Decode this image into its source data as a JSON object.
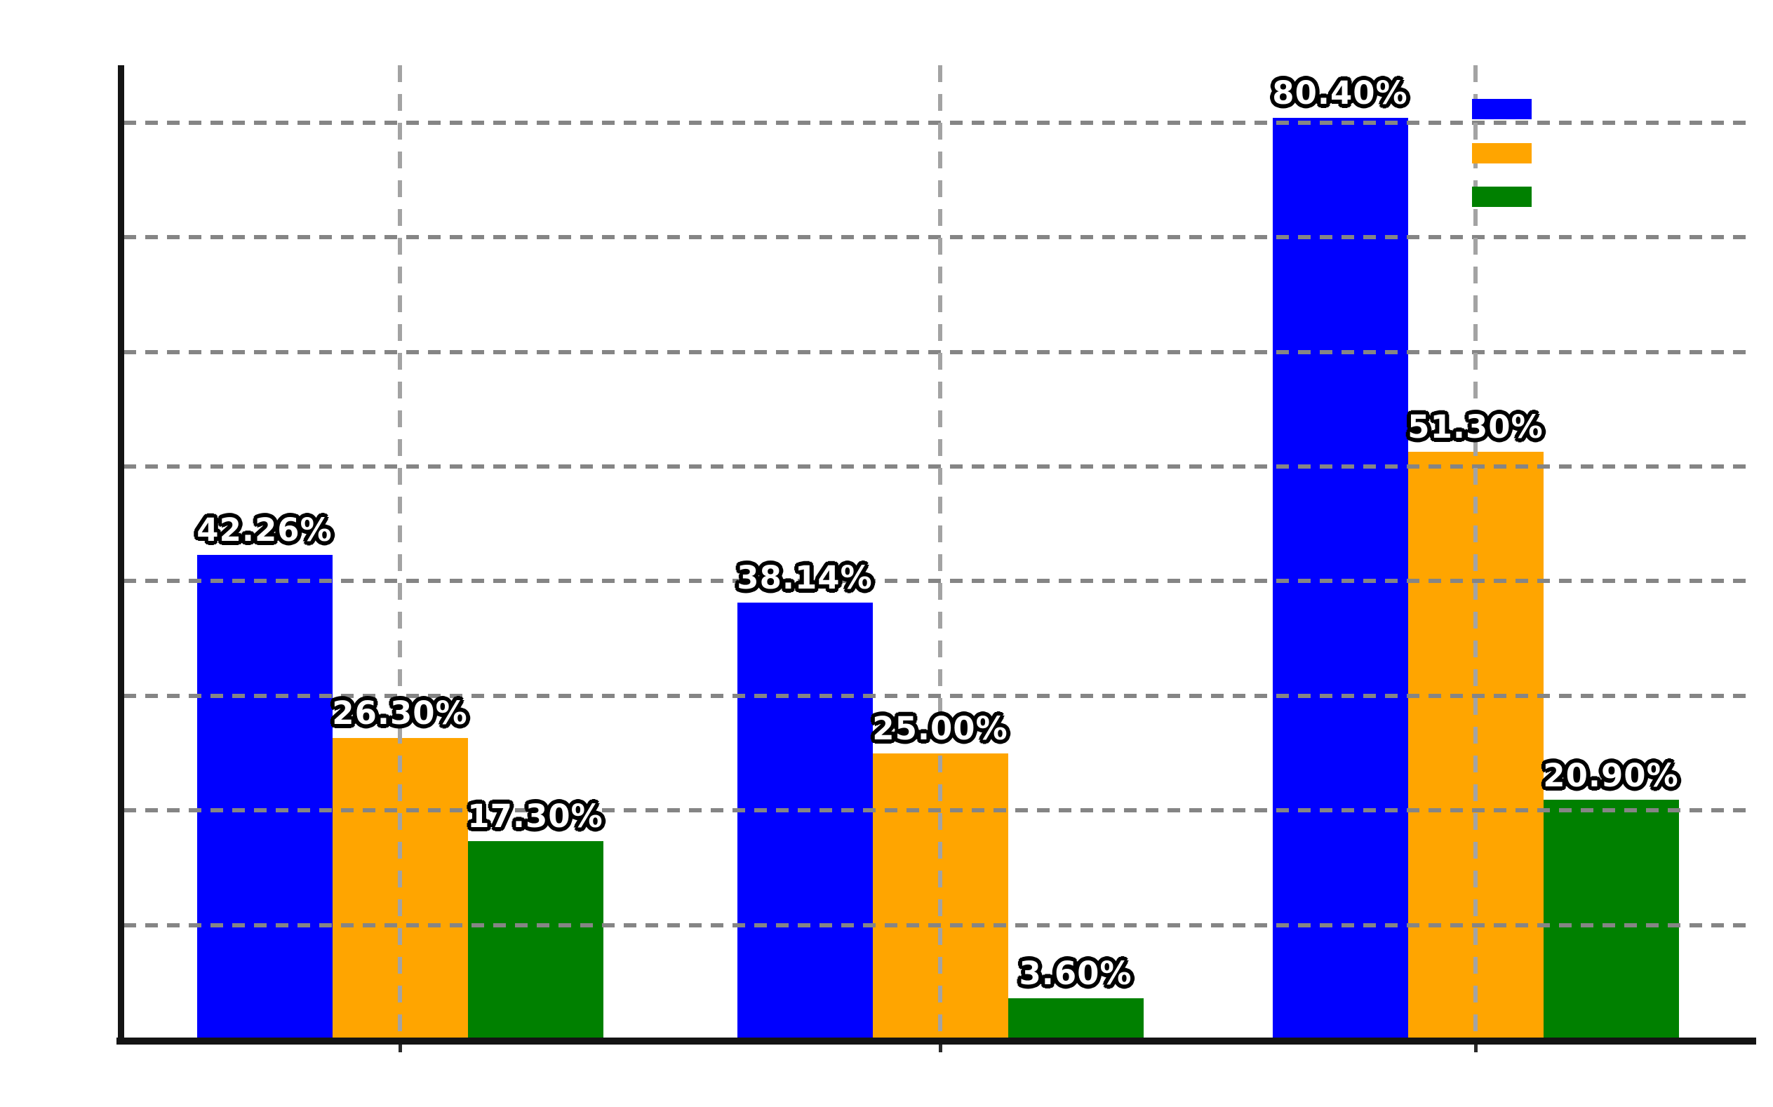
{
  "chart_data": {
    "type": "bar",
    "title": "",
    "xlabel": "",
    "ylabel": "",
    "categories": [
      "",
      "",
      ""
    ],
    "series": [
      {
        "name": "",
        "color": "#0000ff",
        "values": [
          42.26,
          38.14,
          80.4
        ],
        "value_labels": [
          "42.26%",
          "38.14%",
          "80.40%"
        ]
      },
      {
        "name": "",
        "color": "#ffa500",
        "values": [
          26.3,
          25.0,
          51.3
        ],
        "value_labels": [
          "26.30%",
          "25.00%",
          "51.30%"
        ]
      },
      {
        "name": "",
        "color": "#008000",
        "values": [
          17.3,
          3.6,
          20.9
        ],
        "value_labels": [
          "17.30%",
          "3.60%",
          "20.90%"
        ]
      }
    ],
    "ylim": [
      0,
      85
    ],
    "y_gridline_interval_pct": 10,
    "y_tick_labels_visible": false,
    "x_tick_labels_visible": false,
    "grid": {
      "horizontal": true,
      "vertical": true,
      "style": "dashed",
      "horizontal_color": "#858585",
      "vertical_color": "#a3a3a3"
    },
    "legend": {
      "position": "upper right",
      "labels_visible": false,
      "entry_colors": [
        "#0000ff",
        "#ffa500",
        "#008000"
      ]
    },
    "value_label_style": {
      "fill": "#ffffff",
      "outline": "#000000",
      "bold": true
    },
    "axis_color": "#141414",
    "background_color": "#ffffff"
  }
}
